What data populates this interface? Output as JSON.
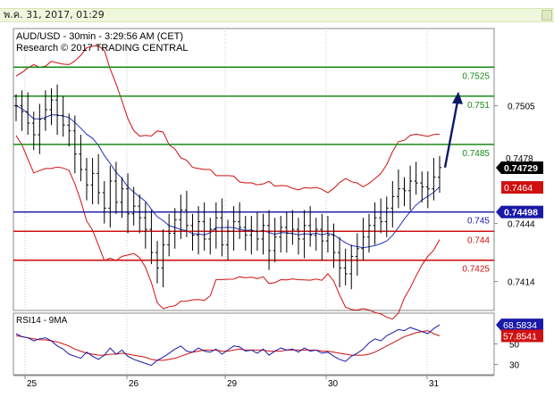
{
  "header": {
    "datetime": "พ.ค. 31, 2017, 01:29"
  },
  "chart_data": {
    "type": "candlestick",
    "title": "AUD/USD - 30min - 3:29:56 AM (CET)",
    "subtitle": "Research © 2017 TRADING CENTRAL",
    "price_axis": {
      "ticks": [
        "0.7505",
        "0.7444",
        "0.7414"
      ],
      "ylim": [
        0.7399,
        0.7545
      ]
    },
    "current_price": "0.74729",
    "price_marker_top": "0.7478",
    "levels": [
      {
        "label": "0.7525",
        "value": 0.7525,
        "color": "#1a8a1a"
      },
      {
        "label": "0.751",
        "value": 0.751,
        "color": "#1a8a1a"
      },
      {
        "label": "0.7485",
        "value": 0.7485,
        "color": "#1a8a1a"
      },
      {
        "label": "0.745",
        "value": 0.745,
        "color": "#1a1aa8",
        "badge": "0.74498"
      },
      {
        "label": "0.744",
        "value": 0.744,
        "color": "#d01010"
      },
      {
        "label": "0.7425",
        "value": 0.7425,
        "color": "#d01010"
      }
    ],
    "red_badge": "0.7464",
    "x_labels": [
      "25",
      "26",
      "29",
      "30",
      "31"
    ],
    "forecast_arrow": {
      "from": 0.7473,
      "to": 0.751
    },
    "series": [
      {
        "name": "AUD/USD",
        "close": [
          0.7505,
          0.7502,
          0.7496,
          0.749,
          0.7498,
          0.7503,
          0.7508,
          0.75,
          0.7495,
          0.7492,
          0.748,
          0.7472,
          0.7464,
          0.747,
          0.746,
          0.7452,
          0.7466,
          0.7455,
          0.7462,
          0.7449,
          0.7453,
          0.7447,
          0.7441,
          0.7429,
          0.7421,
          0.7433,
          0.7439,
          0.7446,
          0.7451,
          0.7443,
          0.7438,
          0.7445,
          0.7436,
          0.7441,
          0.7447,
          0.7433,
          0.744,
          0.7445,
          0.7442,
          0.7438,
          0.744,
          0.7436,
          0.7443,
          0.743,
          0.7437,
          0.7442,
          0.7439,
          0.7441,
          0.7436,
          0.7443,
          0.7438,
          0.7441,
          0.7435,
          0.7438,
          0.7429,
          0.7421,
          0.7418,
          0.7427,
          0.7431,
          0.7437,
          0.7443,
          0.7447,
          0.7445,
          0.7452,
          0.7458,
          0.7462,
          0.7461,
          0.7466,
          0.7465,
          0.7463,
          0.7462,
          0.7468,
          0.7473
        ]
      }
    ],
    "rsi": {
      "label": "RSI14 - 9MA",
      "ticks": [
        "50",
        "30"
      ],
      "ylim": [
        20,
        80
      ],
      "current": "68.5834",
      "ma_badge": "57.8541",
      "values": [
        60,
        57,
        56,
        53,
        55,
        56,
        53,
        48,
        45,
        40,
        38,
        36,
        42,
        38,
        35,
        39,
        46,
        40,
        44,
        38,
        35,
        33,
        31,
        29,
        34,
        37,
        41,
        45,
        48,
        43,
        42,
        46,
        43,
        42,
        45,
        40,
        44,
        48,
        47,
        43,
        44,
        41,
        45,
        39,
        43,
        46,
        44,
        45,
        42,
        46,
        43,
        44,
        41,
        42,
        38,
        35,
        33,
        38,
        41,
        45,
        51,
        55,
        53,
        58,
        61,
        64,
        63,
        66,
        64,
        62,
        60,
        65,
        68.6
      ],
      "ma": [
        58,
        57,
        56,
        55,
        54,
        54,
        53,
        52,
        50,
        48,
        45,
        43,
        41,
        40,
        39,
        39,
        40,
        40,
        41,
        40,
        39,
        38,
        37,
        35,
        34,
        34,
        35,
        36,
        38,
        40,
        42,
        43,
        44,
        44,
        44,
        43,
        43,
        44,
        45,
        44,
        44,
        44,
        44,
        43,
        43,
        43,
        44,
        44,
        44,
        44,
        44,
        44,
        43,
        43,
        42,
        41,
        40,
        39,
        39,
        39,
        40,
        42,
        45,
        48,
        51,
        54,
        57,
        59,
        61,
        62,
        63,
        60,
        57.9
      ]
    }
  }
}
